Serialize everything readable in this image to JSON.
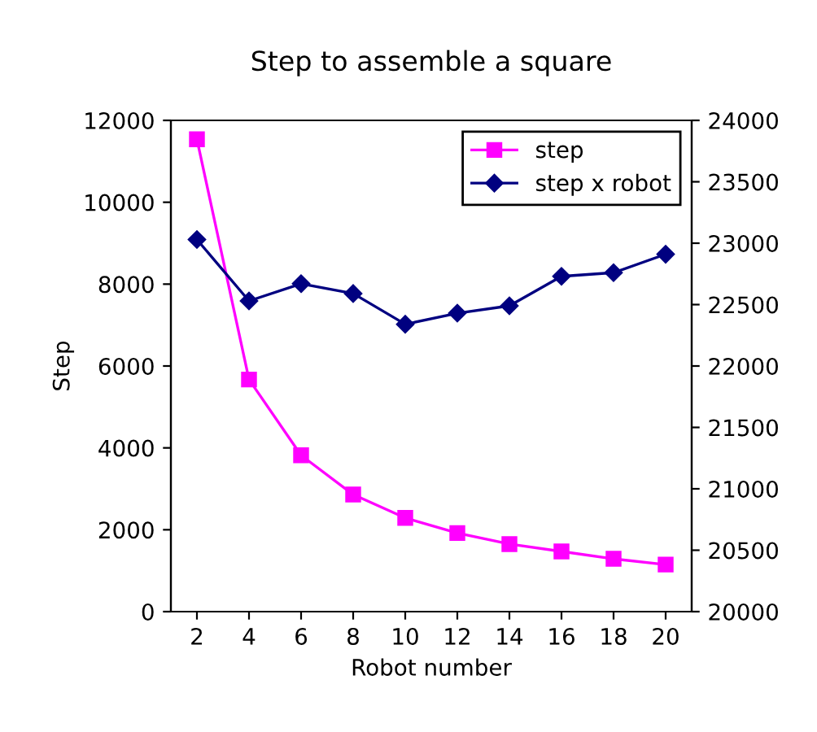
{
  "chart_data": {
    "type": "line",
    "title": "Step to assemble a square",
    "xlabel": "Robot number",
    "ylabel": "Step",
    "categories": [
      "2",
      "4",
      "6",
      "8",
      "10",
      "12",
      "14",
      "16",
      "18",
      "20"
    ],
    "series": [
      {
        "name": "step",
        "color": "#ff00ff",
        "marker": "square",
        "values": [
          11540,
          5670,
          3820,
          2860,
          2290,
          1920,
          1650,
          1470,
          1290,
          1150
        ]
      },
      {
        "name": "step x robot",
        "color": "#000080",
        "marker": "diamond",
        "axis": "y2",
        "values": [
          23030,
          22530,
          22670,
          22590,
          22340,
          22430,
          22490,
          22730,
          22760,
          22910
        ]
      }
    ],
    "ylim": [
      0,
      12000
    ],
    "yticks": [
      0,
      2000,
      4000,
      6000,
      8000,
      10000,
      12000
    ],
    "y2lim": [
      20000,
      24000
    ],
    "y2ticks": [
      20000,
      20500,
      21000,
      21500,
      22000,
      22500,
      23000,
      23500,
      24000
    ],
    "grid": false,
    "legend": "top right"
  }
}
